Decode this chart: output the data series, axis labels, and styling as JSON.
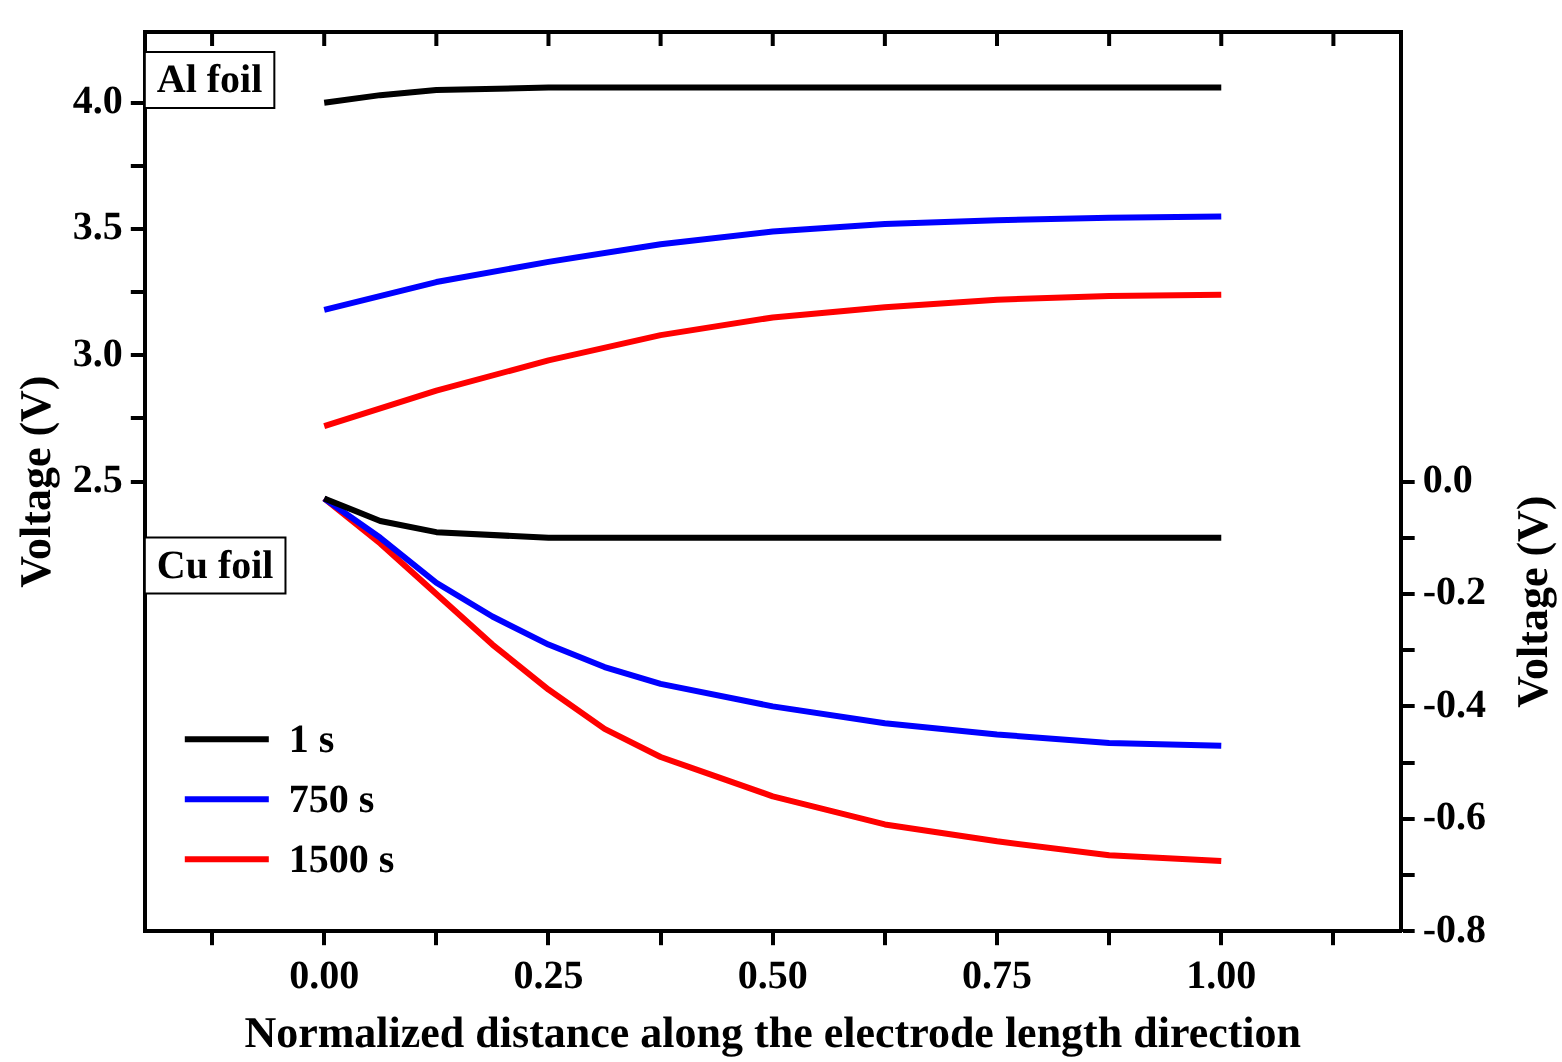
{
  "chart_data": {
    "type": "line",
    "xlabel": "Normalized distance along the electrode length direction",
    "ylabel": "Voltage (V)",
    "y2label": "Voltage (V)",
    "annotations": [
      "Al foil",
      "Cu foil"
    ],
    "xlim": [
      -0.2,
      1.2
    ],
    "xticks": [
      {
        "value": -0.125,
        "label": null
      },
      {
        "value": 0,
        "label": "0.00"
      },
      {
        "value": 0.125,
        "label": null
      },
      {
        "value": 0.25,
        "label": "0.25"
      },
      {
        "value": 0.375,
        "label": null
      },
      {
        "value": 0.5,
        "label": "0.50"
      },
      {
        "value": 0.625,
        "label": null
      },
      {
        "value": 0.75,
        "label": "0.75"
      },
      {
        "value": 0.875,
        "label": null
      },
      {
        "value": 1,
        "label": "1.00"
      },
      {
        "value": 1.125,
        "label": null
      }
    ],
    "ylim": [
      0.72,
      4.28
    ],
    "yticks": [
      2.5,
      {
        "value": 2.75,
        "label": null
      },
      {
        "value": 3,
        "label": "3.0"
      },
      {
        "value": 3.25,
        "label": null
      },
      {
        "value": 3.5,
        "label": "3.5"
      },
      {
        "value": 3.75,
        "label": null
      },
      {
        "value": 4,
        "label": "4.0"
      }
    ],
    "y2lim": [
      -0.8,
      0.8
    ],
    "y2ticks": [
      -0.8,
      {
        "value": -0.7,
        "label": null
      },
      -0.6,
      {
        "value": -0.5,
        "label": null
      },
      -0.4,
      {
        "value": -0.3,
        "label": null
      },
      -0.2,
      {
        "value": -0.1,
        "label": null
      },
      {
        "value": 0,
        "label": "0.0"
      }
    ],
    "grid": false,
    "legend": "bottom left",
    "marker": "none",
    "line_style": "solid",
    "series": [
      {
        "color": "#000000",
        "x": [
          0,
          0.0625,
          0.125,
          0.25,
          0.5,
          0.75,
          1
        ],
        "values": [
          4.0,
          4.03,
          4.05,
          4.06,
          4.06,
          4.06,
          4.06
        ]
      },
      {
        "color": "#0000ff",
        "x": [
          0,
          0.125,
          0.25,
          0.375,
          0.5,
          0.625,
          0.75,
          0.875,
          1
        ],
        "values": [
          3.18,
          3.29,
          3.37,
          3.44,
          3.49,
          3.52,
          3.535,
          3.545,
          3.55
        ]
      },
      {
        "color": "#ff0000",
        "x": [
          0,
          0.125,
          0.25,
          0.375,
          0.5,
          0.625,
          0.75,
          0.875,
          1
        ],
        "values": [
          2.72,
          2.86,
          2.98,
          3.08,
          3.15,
          3.19,
          3.22,
          3.235,
          3.24
        ]
      },
      {
        "name": "1 s",
        "color": "#000000",
        "axis": "y2",
        "x": [
          0,
          0.0625,
          0.125,
          0.25,
          0.5,
          0.75,
          1
        ],
        "values": [
          -0.03,
          -0.07,
          -0.09,
          -0.1,
          -0.1,
          -0.1,
          -0.1
        ]
      },
      {
        "name": "750 s",
        "color": "#0000ff",
        "axis": "y2",
        "x": [
          0,
          0.0625,
          0.125,
          0.1875,
          0.25,
          0.3125,
          0.375,
          0.5,
          0.625,
          0.75,
          0.875,
          1
        ],
        "values": [
          -0.03,
          -0.1,
          -0.18,
          -0.24,
          -0.29,
          -0.33,
          -0.36,
          -0.4,
          -0.43,
          -0.45,
          -0.465,
          -0.47
        ]
      },
      {
        "name": "1500 s",
        "color": "#ff0000",
        "axis": "y2",
        "x": [
          0,
          0.0625,
          0.125,
          0.1875,
          0.25,
          0.3125,
          0.375,
          0.5,
          0.625,
          0.75,
          0.875,
          1
        ],
        "values": [
          -0.03,
          -0.11,
          -0.2,
          -0.29,
          -0.37,
          -0.44,
          -0.49,
          -0.56,
          -0.61,
          -0.64,
          -0.665,
          -0.675
        ]
      }
    ]
  }
}
